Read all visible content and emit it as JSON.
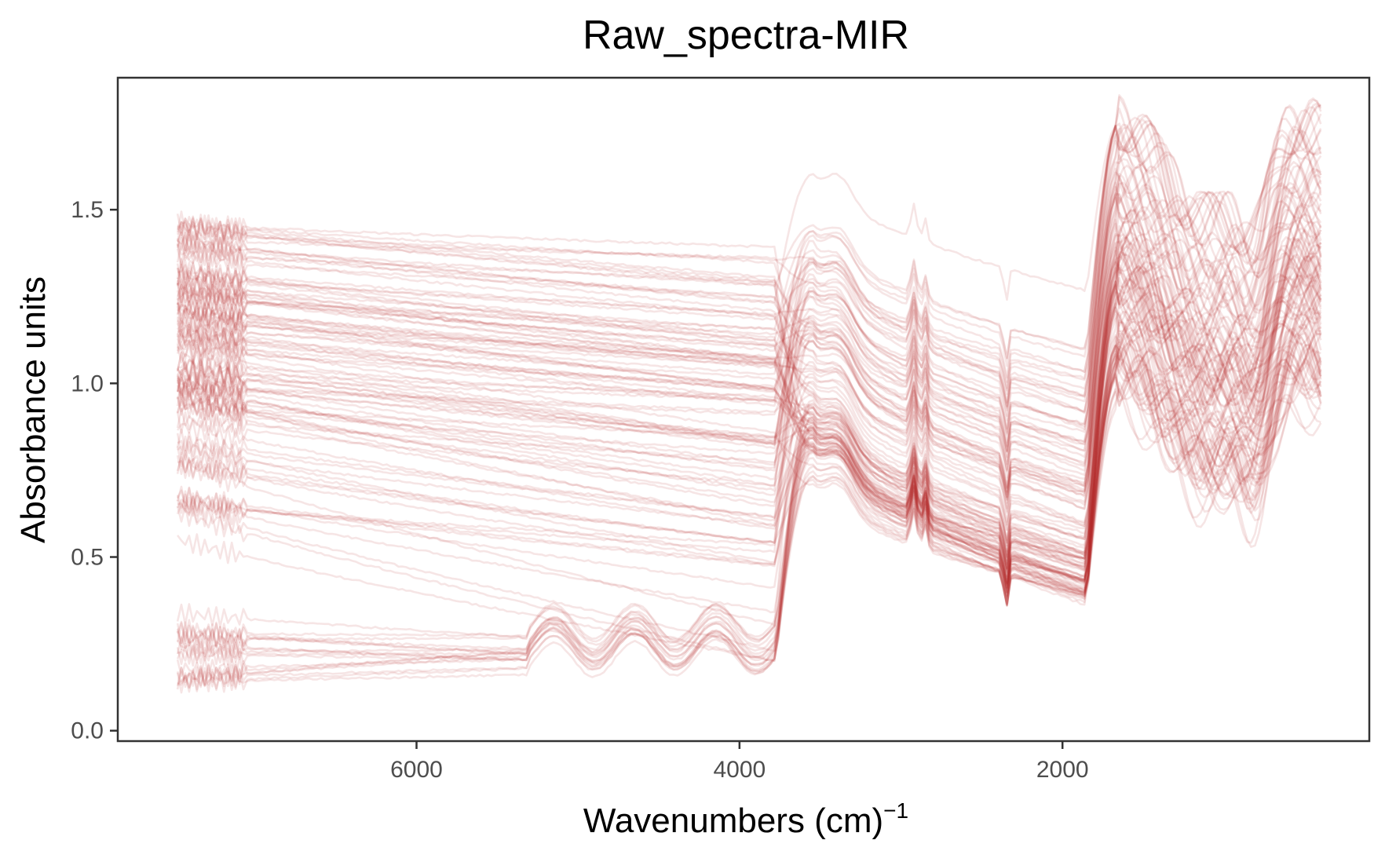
{
  "chart_data": {
    "type": "line",
    "title": "Raw_spectra-MIR",
    "xlabel": "Wavenumbers (cm)",
    "xlabel_superscript": "−1",
    "ylabel": "Absorbance units",
    "xlim": [
      7850,
      100
    ],
    "ylim": [
      -0.03,
      1.88
    ],
    "x_reversed": true,
    "x_ticks": [
      6000,
      4000,
      2000
    ],
    "x_tick_labels": [
      "6000",
      "4000",
      "2000"
    ],
    "y_ticks": [
      0.0,
      0.5,
      1.0,
      1.5
    ],
    "y_tick_labels": [
      "0.0",
      "0.5",
      "1.0",
      "1.5"
    ],
    "grid": false,
    "legend": "none",
    "line_color": "#B2282D",
    "line_opacity": 0.12,
    "series_count": 120,
    "representative_series": [
      {
        "x": [
          7500,
          6000,
          4200,
          3800,
          3650,
          3400,
          3000,
          2600,
          2400,
          2000,
          1800,
          1650,
          1400,
          1000,
          700,
          400
        ],
        "y": [
          1.4,
          1.36,
          1.33,
          1.32,
          1.35,
          1.5,
          1.4,
          1.3,
          1.28,
          1.27,
          1.3,
          1.75,
          1.55,
          1.6,
          1.45,
          1.7
        ]
      },
      {
        "x": [
          7500,
          6000,
          4200,
          3800,
          3650,
          3400,
          3000,
          2600,
          2400,
          2000,
          1800,
          1650,
          1400,
          1000,
          700,
          400
        ],
        "y": [
          1.3,
          1.2,
          1.1,
          1.05,
          1.1,
          1.25,
          1.1,
          0.95,
          0.85,
          0.8,
          0.85,
          1.5,
          1.3,
          1.4,
          1.2,
          1.35
        ]
      },
      {
        "x": [
          7500,
          6000,
          4200,
          3800,
          3650,
          3400,
          3000,
          2600,
          2400,
          2000,
          1800,
          1650,
          1400,
          1000,
          700,
          400
        ],
        "y": [
          1.15,
          1.0,
          0.85,
          0.8,
          0.9,
          1.1,
          0.95,
          0.75,
          0.6,
          0.5,
          0.55,
          1.3,
          1.1,
          1.2,
          1.0,
          1.15
        ]
      },
      {
        "x": [
          7500,
          6000,
          4200,
          3800,
          3650,
          3400,
          3000,
          2600,
          2400,
          2000,
          1800,
          1650,
          1400,
          1000,
          700,
          400
        ],
        "y": [
          0.8,
          0.65,
          0.5,
          0.4,
          0.55,
          0.95,
          0.8,
          0.55,
          0.45,
          0.4,
          0.45,
          1.2,
          1.0,
          1.1,
          0.9,
          1.05
        ]
      },
      {
        "x": [
          7500,
          6000,
          4200,
          3800,
          3650,
          3400,
          3000,
          2600,
          2400,
          2000,
          1800,
          1650,
          1400,
          1000,
          700,
          400
        ],
        "y": [
          0.6,
          0.45,
          0.3,
          0.25,
          0.4,
          0.8,
          0.7,
          0.5,
          0.4,
          0.38,
          0.42,
          1.1,
          0.95,
          1.05,
          0.8,
          0.95
        ]
      },
      {
        "x": [
          7500,
          6000,
          4200,
          3800,
          3650,
          3400,
          3000,
          2600,
          2400,
          2000,
          1800,
          1650,
          1400,
          1000,
          700,
          400
        ],
        "y": [
          0.25,
          0.22,
          0.28,
          0.2,
          0.4,
          0.85,
          0.75,
          0.55,
          0.45,
          0.42,
          0.45,
          1.15,
          1.0,
          1.1,
          0.85,
          1.0
        ]
      },
      {
        "x": [
          7500,
          6000,
          4200,
          3800,
          3650,
          3400,
          3000,
          2600,
          2400,
          2000,
          1800,
          1650,
          1400,
          1000,
          700,
          400
        ],
        "y": [
          0.15,
          0.12,
          0.18,
          0.17,
          0.38,
          0.8,
          0.72,
          0.5,
          0.42,
          0.4,
          0.44,
          1.1,
          0.95,
          1.05,
          0.8,
          0.95
        ]
      }
    ]
  }
}
